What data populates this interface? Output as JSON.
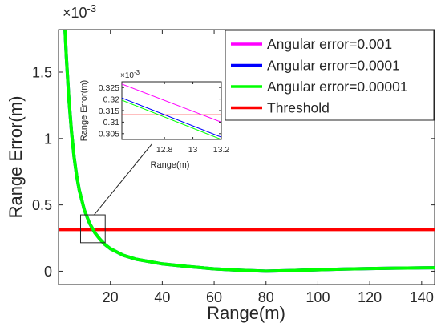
{
  "chart_data": [
    {
      "type": "line",
      "xlabel": "Range(m)",
      "ylabel": "Range Error(m)",
      "y_exponent": "×10",
      "y_exponent_power": "-3",
      "xlim": [
        0,
        145
      ],
      "ylim": [
        -0.1,
        1.82
      ],
      "x_ticks": [
        {
          "value": 20,
          "label": "20"
        },
        {
          "value": 40,
          "label": "40"
        },
        {
          "value": 60,
          "label": "60"
        },
        {
          "value": 80,
          "label": "80"
        },
        {
          "value": 100,
          "label": "100"
        },
        {
          "value": 120,
          "label": "120"
        },
        {
          "value": 140,
          "label": "140"
        }
      ],
      "y_ticks": [
        {
          "value": 0,
          "label": "0"
        },
        {
          "value": 0.5,
          "label": "0.5"
        },
        {
          "value": 1,
          "label": "1"
        },
        {
          "value": 1.5,
          "label": "1.5"
        }
      ],
      "grid": false,
      "legend_position": "top-right",
      "series": [
        {
          "name": "Angular error=0.001",
          "color": "#ff00ff",
          "x": [
            2.5,
            3,
            4,
            5,
            6,
            7,
            8,
            10,
            12,
            14,
            16,
            18,
            20,
            25,
            30,
            40,
            50,
            60,
            70,
            80,
            90,
            100,
            110,
            120,
            130,
            140,
            145
          ],
          "y": [
            1.82,
            1.62,
            1.3,
            1.05,
            0.86,
            0.72,
            0.61,
            0.46,
            0.36,
            0.29,
            0.24,
            0.2,
            0.17,
            0.12,
            0.09,
            0.055,
            0.035,
            0.018,
            0.007,
            0.0,
            0.005,
            0.011,
            0.016,
            0.02,
            0.023,
            0.025,
            0.026
          ]
        },
        {
          "name": "Angular error=0.0001",
          "color": "#0000ff",
          "x": [
            2.5,
            3,
            4,
            5,
            6,
            7,
            8,
            10,
            12,
            14,
            16,
            18,
            20,
            25,
            30,
            40,
            50,
            60,
            70,
            80,
            90,
            100,
            110,
            120,
            130,
            140,
            145
          ],
          "y": [
            1.82,
            1.62,
            1.3,
            1.05,
            0.86,
            0.72,
            0.61,
            0.46,
            0.36,
            0.29,
            0.24,
            0.2,
            0.17,
            0.12,
            0.09,
            0.055,
            0.035,
            0.018,
            0.007,
            0.0,
            0.005,
            0.011,
            0.016,
            0.02,
            0.023,
            0.025,
            0.026
          ]
        },
        {
          "name": "Angular error=0.00001",
          "color": "#00ff00",
          "x": [
            2.5,
            3,
            4,
            5,
            6,
            7,
            8,
            10,
            12,
            14,
            16,
            18,
            20,
            25,
            30,
            40,
            50,
            60,
            70,
            80,
            90,
            100,
            110,
            120,
            130,
            140,
            145
          ],
          "y": [
            1.82,
            1.62,
            1.3,
            1.05,
            0.86,
            0.72,
            0.61,
            0.46,
            0.36,
            0.29,
            0.24,
            0.2,
            0.17,
            0.12,
            0.09,
            0.055,
            0.035,
            0.018,
            0.007,
            0.0,
            0.005,
            0.011,
            0.016,
            0.02,
            0.023,
            0.025,
            0.026
          ]
        },
        {
          "name": "Threshold",
          "color": "#ff0000",
          "x": [
            0,
            145
          ],
          "y": [
            0.313,
            0.313
          ]
        }
      ],
      "zoom_region": {
        "x": [
          8.5,
          18
        ],
        "y": [
          0.215,
          0.425
        ]
      }
    },
    {
      "type": "line",
      "role": "inset",
      "xlabel": "Range(m)",
      "ylabel": "Range Error(m)",
      "y_exponent": "×10",
      "y_exponent_power": "-3",
      "xlim": [
        12.5,
        13.2
      ],
      "ylim": [
        0.3025,
        0.3275
      ],
      "x_ticks": [
        {
          "value": 12.8,
          "label": "12.8"
        },
        {
          "value": 13,
          "label": "13"
        },
        {
          "value": 13.2,
          "label": "13.2"
        }
      ],
      "y_ticks": [
        {
          "value": 0.305,
          "label": "0.305"
        },
        {
          "value": 0.31,
          "label": "0.31"
        },
        {
          "value": 0.315,
          "label": "0.315"
        },
        {
          "value": 0.32,
          "label": "0.32"
        },
        {
          "value": 0.325,
          "label": "0.325"
        }
      ],
      "series": [
        {
          "name": "Angular error=0.001",
          "color": "#ff00ff",
          "x": [
            12.5,
            13.2
          ],
          "y": [
            0.3265,
            0.31
          ]
        },
        {
          "name": "Angular error=0.0001",
          "color": "#0000ff",
          "x": [
            12.5,
            13.2
          ],
          "y": [
            0.3205,
            0.3035
          ]
        },
        {
          "name": "Angular error=0.00001",
          "color": "#00ff00",
          "x": [
            12.5,
            13.2
          ],
          "y": [
            0.3195,
            0.3025
          ]
        },
        {
          "name": "Threshold",
          "color": "#ff0000",
          "x": [
            12.5,
            13.2
          ],
          "y": [
            0.3132,
            0.3132
          ]
        }
      ]
    }
  ]
}
